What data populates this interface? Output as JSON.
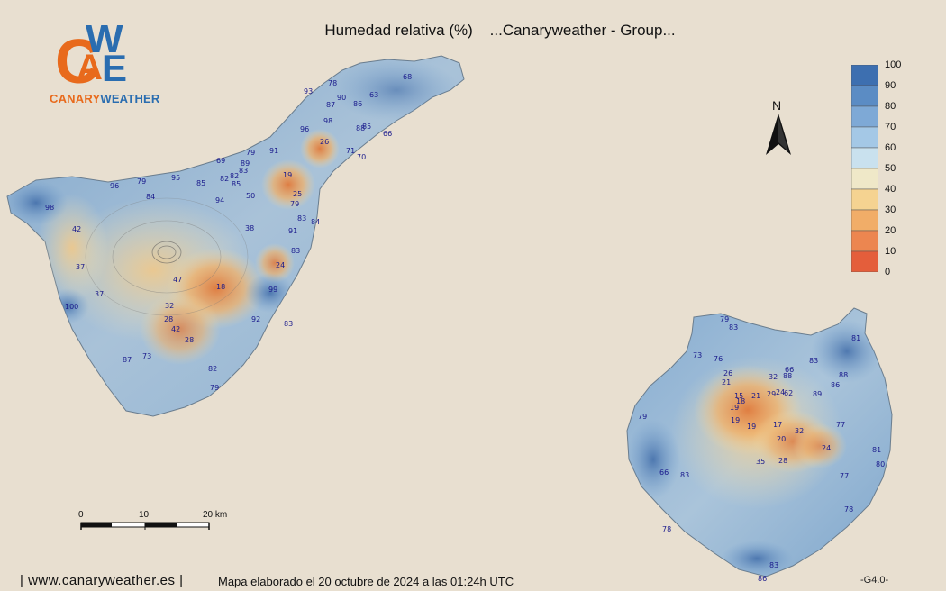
{
  "header": {
    "title": "Humedad relativa (%)    ...Canaryweather - Group..."
  },
  "logo": {
    "letters": "CAWE",
    "text_orange": "CANARY",
    "text_blue": "WEATHER"
  },
  "legend": {
    "labels": [
      "100",
      "90",
      "80",
      "70",
      "60",
      "50",
      "40",
      "30",
      "20",
      "10",
      "0"
    ],
    "colors": [
      "#3d6fb0",
      "#5b8cc4",
      "#7ea9d6",
      "#a4c8e6",
      "#c9e1ee",
      "#efe8c8",
      "#f5d391",
      "#f1ad68",
      "#ec8650",
      "#e45e3b",
      "#d83a2a"
    ]
  },
  "north_label": "N",
  "scale": {
    "labels": [
      "0",
      "10",
      "20 km"
    ]
  },
  "footer": {
    "website": "| www.canaryweather.es |",
    "map_note": "Mapa elaborado el 20 octubre de 2024 a las 01:24h UTC",
    "version": "-G4.0-"
  },
  "stations": {
    "tenerife": [
      "93",
      "78",
      "90",
      "87",
      "86",
      "63",
      "68",
      "98",
      "85",
      "88",
      "96",
      "66",
      "91",
      "71",
      "70",
      "79",
      "89",
      "83",
      "82",
      "85",
      "95",
      "79",
      "96",
      "84",
      "82",
      "85",
      "50",
      "94",
      "98",
      "42",
      "38",
      "37",
      "37",
      "47",
      "18",
      "24",
      "100",
      "32",
      "28",
      "42",
      "28",
      "99",
      "92",
      "83",
      "87",
      "73",
      "82",
      "79",
      "26",
      "19",
      "25",
      "79",
      "83",
      "84",
      "91",
      "83",
      "69"
    ],
    "gran_canaria": [
      "79",
      "83",
      "81",
      "73",
      "76",
      "26",
      "21",
      "32",
      "66",
      "88",
      "83",
      "88",
      "86",
      "89",
      "15",
      "18",
      "21",
      "29",
      "24",
      "62",
      "19",
      "19",
      "19",
      "17",
      "77",
      "32",
      "20",
      "24",
      "81",
      "80",
      "35",
      "28",
      "77",
      "79",
      "66",
      "83",
      "78",
      "78",
      "83",
      "86"
    ]
  }
}
